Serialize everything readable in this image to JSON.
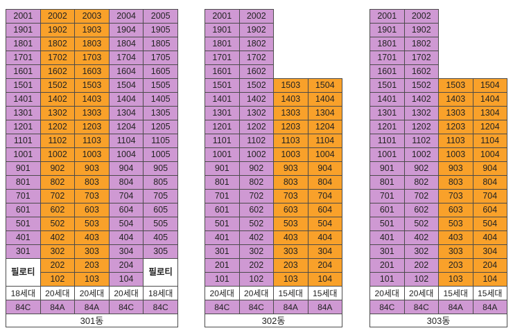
{
  "colors": {
    "purple": "#cf99d3",
    "orange": "#f9a12a",
    "white": "#ffffff"
  },
  "buildings": [
    {
      "name": "301동",
      "rows": [
        [
          [
            "2001",
            "p"
          ],
          [
            "2002",
            "o"
          ],
          [
            "2003",
            "o"
          ],
          [
            "2004",
            "p"
          ],
          [
            "2005",
            "p"
          ]
        ],
        [
          [
            "1901",
            "p"
          ],
          [
            "1902",
            "o"
          ],
          [
            "1903",
            "o"
          ],
          [
            "1904",
            "p"
          ],
          [
            "1905",
            "p"
          ]
        ],
        [
          [
            "1801",
            "p"
          ],
          [
            "1802",
            "o"
          ],
          [
            "1803",
            "o"
          ],
          [
            "1804",
            "p"
          ],
          [
            "1805",
            "p"
          ]
        ],
        [
          [
            "1701",
            "p"
          ],
          [
            "1702",
            "o"
          ],
          [
            "1703",
            "o"
          ],
          [
            "1704",
            "p"
          ],
          [
            "1705",
            "p"
          ]
        ],
        [
          [
            "1601",
            "p"
          ],
          [
            "1602",
            "o"
          ],
          [
            "1603",
            "o"
          ],
          [
            "1604",
            "p"
          ],
          [
            "1605",
            "p"
          ]
        ],
        [
          [
            "1501",
            "p"
          ],
          [
            "1502",
            "o"
          ],
          [
            "1503",
            "o"
          ],
          [
            "1504",
            "p"
          ],
          [
            "1505",
            "p"
          ]
        ],
        [
          [
            "1401",
            "p"
          ],
          [
            "1402",
            "o"
          ],
          [
            "1403",
            "o"
          ],
          [
            "1404",
            "p"
          ],
          [
            "1405",
            "p"
          ]
        ],
        [
          [
            "1301",
            "p"
          ],
          [
            "1302",
            "o"
          ],
          [
            "1303",
            "o"
          ],
          [
            "1304",
            "p"
          ],
          [
            "1305",
            "p"
          ]
        ],
        [
          [
            "1201",
            "p"
          ],
          [
            "1202",
            "o"
          ],
          [
            "1203",
            "o"
          ],
          [
            "1204",
            "p"
          ],
          [
            "1205",
            "p"
          ]
        ],
        [
          [
            "1101",
            "p"
          ],
          [
            "1102",
            "o"
          ],
          [
            "1103",
            "o"
          ],
          [
            "1104",
            "p"
          ],
          [
            "1105",
            "p"
          ]
        ],
        [
          [
            "1001",
            "p"
          ],
          [
            "1002",
            "o"
          ],
          [
            "1003",
            "o"
          ],
          [
            "1004",
            "p"
          ],
          [
            "1005",
            "p"
          ]
        ],
        [
          [
            "901",
            "p"
          ],
          [
            "902",
            "o"
          ],
          [
            "903",
            "o"
          ],
          [
            "904",
            "p"
          ],
          [
            "905",
            "p"
          ]
        ],
        [
          [
            "801",
            "p"
          ],
          [
            "802",
            "o"
          ],
          [
            "803",
            "o"
          ],
          [
            "804",
            "p"
          ],
          [
            "805",
            "p"
          ]
        ],
        [
          [
            "701",
            "p"
          ],
          [
            "702",
            "o"
          ],
          [
            "703",
            "o"
          ],
          [
            "704",
            "p"
          ],
          [
            "705",
            "p"
          ]
        ],
        [
          [
            "601",
            "p"
          ],
          [
            "602",
            "o"
          ],
          [
            "603",
            "o"
          ],
          [
            "604",
            "p"
          ],
          [
            "605",
            "p"
          ]
        ],
        [
          [
            "501",
            "p"
          ],
          [
            "502",
            "o"
          ],
          [
            "503",
            "o"
          ],
          [
            "504",
            "p"
          ],
          [
            "505",
            "p"
          ]
        ],
        [
          [
            "401",
            "p"
          ],
          [
            "402",
            "o"
          ],
          [
            "403",
            "o"
          ],
          [
            "404",
            "p"
          ],
          [
            "405",
            "p"
          ]
        ],
        [
          [
            "301",
            "p"
          ],
          [
            "302",
            "o"
          ],
          [
            "303",
            "o"
          ],
          [
            "304",
            "p"
          ],
          [
            "305",
            "p"
          ]
        ],
        [
          [
            "필로티",
            "w",
            2
          ],
          [
            "202",
            "o"
          ],
          [
            "203",
            "o"
          ],
          [
            "204",
            "p"
          ],
          [
            "필로티",
            "w",
            2
          ]
        ],
        [
          null,
          [
            "102",
            "o"
          ],
          [
            "103",
            "o"
          ],
          [
            "104",
            "p"
          ],
          null
        ]
      ],
      "households": [
        "18세대",
        "20세대",
        "20세대",
        "20세대",
        "18세대"
      ],
      "types": [
        "84C",
        "84A",
        "84A",
        "84C",
        "84C"
      ]
    },
    {
      "name": "302동",
      "rows": [
        [
          [
            "2001",
            "p"
          ],
          [
            "2002",
            "p"
          ],
          null,
          null
        ],
        [
          [
            "1901",
            "p"
          ],
          [
            "1902",
            "p"
          ],
          null,
          null
        ],
        [
          [
            "1801",
            "p"
          ],
          [
            "1802",
            "p"
          ],
          null,
          null
        ],
        [
          [
            "1701",
            "p"
          ],
          [
            "1702",
            "p"
          ],
          null,
          null
        ],
        [
          [
            "1601",
            "p"
          ],
          [
            "1602",
            "p"
          ],
          null,
          null
        ],
        [
          [
            "1501",
            "p"
          ],
          [
            "1502",
            "p"
          ],
          [
            "1503",
            "o"
          ],
          [
            "1504",
            "o"
          ]
        ],
        [
          [
            "1401",
            "p"
          ],
          [
            "1402",
            "p"
          ],
          [
            "1403",
            "o"
          ],
          [
            "1404",
            "o"
          ]
        ],
        [
          [
            "1301",
            "p"
          ],
          [
            "1302",
            "p"
          ],
          [
            "1303",
            "o"
          ],
          [
            "1304",
            "o"
          ]
        ],
        [
          [
            "1201",
            "p"
          ],
          [
            "1202",
            "p"
          ],
          [
            "1203",
            "o"
          ],
          [
            "1204",
            "o"
          ]
        ],
        [
          [
            "1101",
            "p"
          ],
          [
            "1102",
            "p"
          ],
          [
            "1103",
            "o"
          ],
          [
            "1104",
            "o"
          ]
        ],
        [
          [
            "1001",
            "p"
          ],
          [
            "1002",
            "p"
          ],
          [
            "1003",
            "o"
          ],
          [
            "1004",
            "o"
          ]
        ],
        [
          [
            "901",
            "p"
          ],
          [
            "902",
            "p"
          ],
          [
            "903",
            "o"
          ],
          [
            "904",
            "o"
          ]
        ],
        [
          [
            "801",
            "p"
          ],
          [
            "802",
            "p"
          ],
          [
            "803",
            "o"
          ],
          [
            "804",
            "o"
          ]
        ],
        [
          [
            "701",
            "p"
          ],
          [
            "702",
            "p"
          ],
          [
            "703",
            "o"
          ],
          [
            "704",
            "o"
          ]
        ],
        [
          [
            "601",
            "p"
          ],
          [
            "602",
            "p"
          ],
          [
            "603",
            "o"
          ],
          [
            "604",
            "o"
          ]
        ],
        [
          [
            "501",
            "p"
          ],
          [
            "502",
            "p"
          ],
          [
            "503",
            "o"
          ],
          [
            "504",
            "o"
          ]
        ],
        [
          [
            "401",
            "p"
          ],
          [
            "402",
            "p"
          ],
          [
            "403",
            "o"
          ],
          [
            "404",
            "o"
          ]
        ],
        [
          [
            "301",
            "p"
          ],
          [
            "302",
            "p"
          ],
          [
            "303",
            "o"
          ],
          [
            "304",
            "o"
          ]
        ],
        [
          [
            "201",
            "p"
          ],
          [
            "202",
            "p"
          ],
          [
            "203",
            "o"
          ],
          [
            "204",
            "o"
          ]
        ],
        [
          [
            "101",
            "p"
          ],
          [
            "102",
            "p"
          ],
          [
            "103",
            "o"
          ],
          [
            "104",
            "o"
          ]
        ]
      ],
      "households": [
        "20세대",
        "20세대",
        "15세대",
        "15세대"
      ],
      "types": [
        "84C",
        "84C",
        "84A",
        "84A"
      ]
    },
    {
      "name": "303동",
      "rows": [
        [
          [
            "2001",
            "p"
          ],
          [
            "2002",
            "p"
          ],
          null,
          null
        ],
        [
          [
            "1901",
            "p"
          ],
          [
            "1902",
            "p"
          ],
          null,
          null
        ],
        [
          [
            "1801",
            "p"
          ],
          [
            "1802",
            "p"
          ],
          null,
          null
        ],
        [
          [
            "1701",
            "p"
          ],
          [
            "1702",
            "p"
          ],
          null,
          null
        ],
        [
          [
            "1601",
            "p"
          ],
          [
            "1602",
            "p"
          ],
          null,
          null
        ],
        [
          [
            "1501",
            "p"
          ],
          [
            "1502",
            "p"
          ],
          [
            "1503",
            "o"
          ],
          [
            "1504",
            "o"
          ]
        ],
        [
          [
            "1401",
            "p"
          ],
          [
            "1402",
            "p"
          ],
          [
            "1403",
            "o"
          ],
          [
            "1404",
            "o"
          ]
        ],
        [
          [
            "1301",
            "p"
          ],
          [
            "1302",
            "p"
          ],
          [
            "1303",
            "o"
          ],
          [
            "1304",
            "o"
          ]
        ],
        [
          [
            "1201",
            "p"
          ],
          [
            "1202",
            "p"
          ],
          [
            "1203",
            "o"
          ],
          [
            "1204",
            "o"
          ]
        ],
        [
          [
            "1101",
            "p"
          ],
          [
            "1102",
            "p"
          ],
          [
            "1103",
            "o"
          ],
          [
            "1104",
            "o"
          ]
        ],
        [
          [
            "1001",
            "p"
          ],
          [
            "1002",
            "p"
          ],
          [
            "1003",
            "o"
          ],
          [
            "1004",
            "o"
          ]
        ],
        [
          [
            "901",
            "p"
          ],
          [
            "902",
            "p"
          ],
          [
            "903",
            "o"
          ],
          [
            "904",
            "o"
          ]
        ],
        [
          [
            "801",
            "p"
          ],
          [
            "802",
            "p"
          ],
          [
            "803",
            "o"
          ],
          [
            "804",
            "o"
          ]
        ],
        [
          [
            "701",
            "p"
          ],
          [
            "702",
            "p"
          ],
          [
            "703",
            "o"
          ],
          [
            "704",
            "o"
          ]
        ],
        [
          [
            "601",
            "p"
          ],
          [
            "602",
            "p"
          ],
          [
            "603",
            "o"
          ],
          [
            "604",
            "o"
          ]
        ],
        [
          [
            "501",
            "p"
          ],
          [
            "502",
            "p"
          ],
          [
            "503",
            "o"
          ],
          [
            "504",
            "o"
          ]
        ],
        [
          [
            "401",
            "p"
          ],
          [
            "402",
            "p"
          ],
          [
            "403",
            "o"
          ],
          [
            "404",
            "o"
          ]
        ],
        [
          [
            "301",
            "p"
          ],
          [
            "302",
            "p"
          ],
          [
            "303",
            "o"
          ],
          [
            "304",
            "o"
          ]
        ],
        [
          [
            "201",
            "p"
          ],
          [
            "202",
            "p"
          ],
          [
            "203",
            "o"
          ],
          [
            "204",
            "o"
          ]
        ],
        [
          [
            "101",
            "p"
          ],
          [
            "102",
            "p"
          ],
          [
            "103",
            "o"
          ],
          [
            "104",
            "o"
          ]
        ]
      ],
      "households": [
        "20세대",
        "20세대",
        "15세대",
        "15세대"
      ],
      "types": [
        "84C",
        "84C",
        "84A",
        "84A"
      ]
    }
  ]
}
